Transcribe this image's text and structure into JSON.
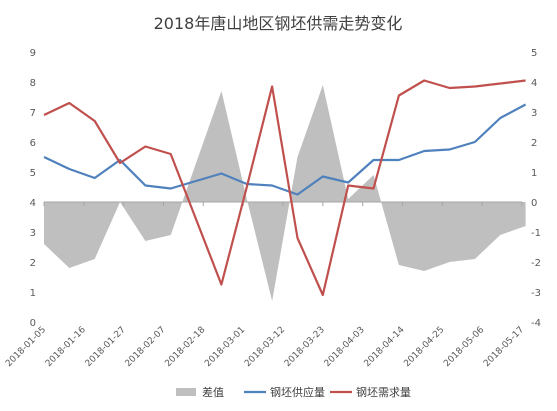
{
  "chart_data": {
    "type": "line",
    "title": "2018年唐山地区钢坯供需走势变化",
    "xlabel": "",
    "ylabel_left": "",
    "ylabel_right": "",
    "ylim_left": [
      0,
      9
    ],
    "ylim_right": [
      -4,
      5
    ],
    "left_ticks": [
      "0",
      "1",
      "2",
      "3",
      "4",
      "5",
      "6",
      "7",
      "8",
      "9"
    ],
    "right_ticks": [
      "-4",
      "-3",
      "-2",
      "-1",
      "0",
      "1",
      "2",
      "3",
      "4",
      "5"
    ],
    "x_tick_labels": [
      "2018-01-05",
      "2018-01-16",
      "2018-01-27",
      "2018-02-07",
      "2018-02-18",
      "2018-03-01",
      "2018-03-12",
      "2018-03-23",
      "2018-04-03",
      "2018-04-14",
      "2018-04-25",
      "2018-05-06",
      "2018-05-17"
    ],
    "x_dates": [
      "2018-01-05",
      "2018-01-12",
      "2018-01-19",
      "2018-01-26",
      "2018-02-02",
      "2018-02-09",
      "2018-02-23",
      "2018-03-02",
      "2018-03-09",
      "2018-03-16",
      "2018-03-23",
      "2018-03-30",
      "2018-04-06",
      "2018-04-13",
      "2018-04-20",
      "2018-04-27",
      "2018-05-04",
      "2018-05-11",
      "2018-05-18"
    ],
    "grid": false,
    "legend_position": "bottom",
    "series": [
      {
        "name": "差值",
        "type": "area",
        "axis": "right",
        "color": "#bfbfbf",
        "values": [
          -1.4,
          -2.2,
          -1.9,
          0.0,
          -1.3,
          -1.1,
          3.7,
          0.1,
          -3.3,
          1.5,
          3.9,
          0.1,
          0.9,
          -2.1,
          -2.3,
          -2.0,
          -1.9,
          -1.1,
          -0.8
        ]
      },
      {
        "name": "钢坯供应量",
        "type": "line",
        "axis": "left",
        "color": "#4f81bd",
        "values": [
          5.5,
          5.1,
          4.8,
          5.4,
          4.55,
          4.45,
          4.95,
          4.6,
          4.55,
          4.25,
          4.85,
          4.65,
          5.4,
          5.4,
          5.7,
          5.75,
          6.0,
          6.8,
          7.25
        ]
      },
      {
        "name": "钢坯需求量",
        "type": "line",
        "axis": "left",
        "color": "#c0504d",
        "values": [
          6.9,
          7.3,
          6.7,
          5.3,
          5.85,
          5.6,
          1.25,
          4.5,
          7.85,
          2.8,
          0.9,
          4.55,
          4.45,
          7.55,
          8.05,
          7.8,
          7.85,
          7.95,
          8.05
        ]
      }
    ]
  }
}
